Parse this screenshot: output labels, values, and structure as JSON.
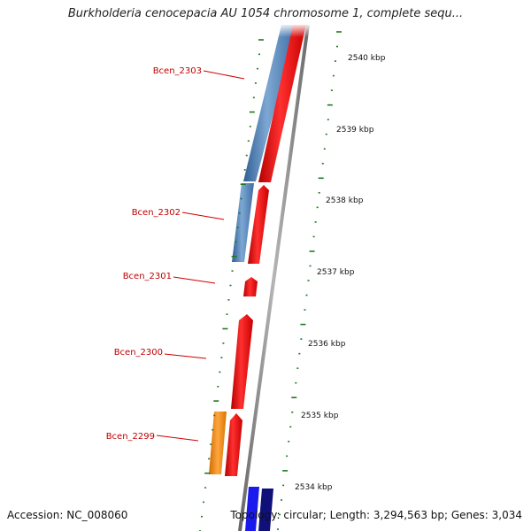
{
  "title": "Burkholderia cenocepacia AU 1054 chromosome 1, complete sequ...",
  "accession": "Accession: NC_008060",
  "summary": "Topology: circular; Length: 3,294,563 bp; Genes: 3,034",
  "colors": {
    "forward_cds": "#ee1111",
    "reverse_cds": "#4f82b8",
    "rna": "#ff8c00",
    "other_a": "#1a1aee",
    "other_b": "#10107a",
    "backbone": "#8a8a8a",
    "tick": "#1e7a1e",
    "gene_label": "#c00000"
  },
  "kbp_labels": [
    "2540 kbp",
    "2539 kbp",
    "2538 kbp",
    "2537 kbp",
    "2536 kbp",
    "2535 kbp",
    "2534 kbp"
  ],
  "gene_labels": [
    "Bcen_2303",
    "Bcen_2302",
    "Bcen_2301",
    "Bcen_2300",
    "Bcen_2299"
  ]
}
